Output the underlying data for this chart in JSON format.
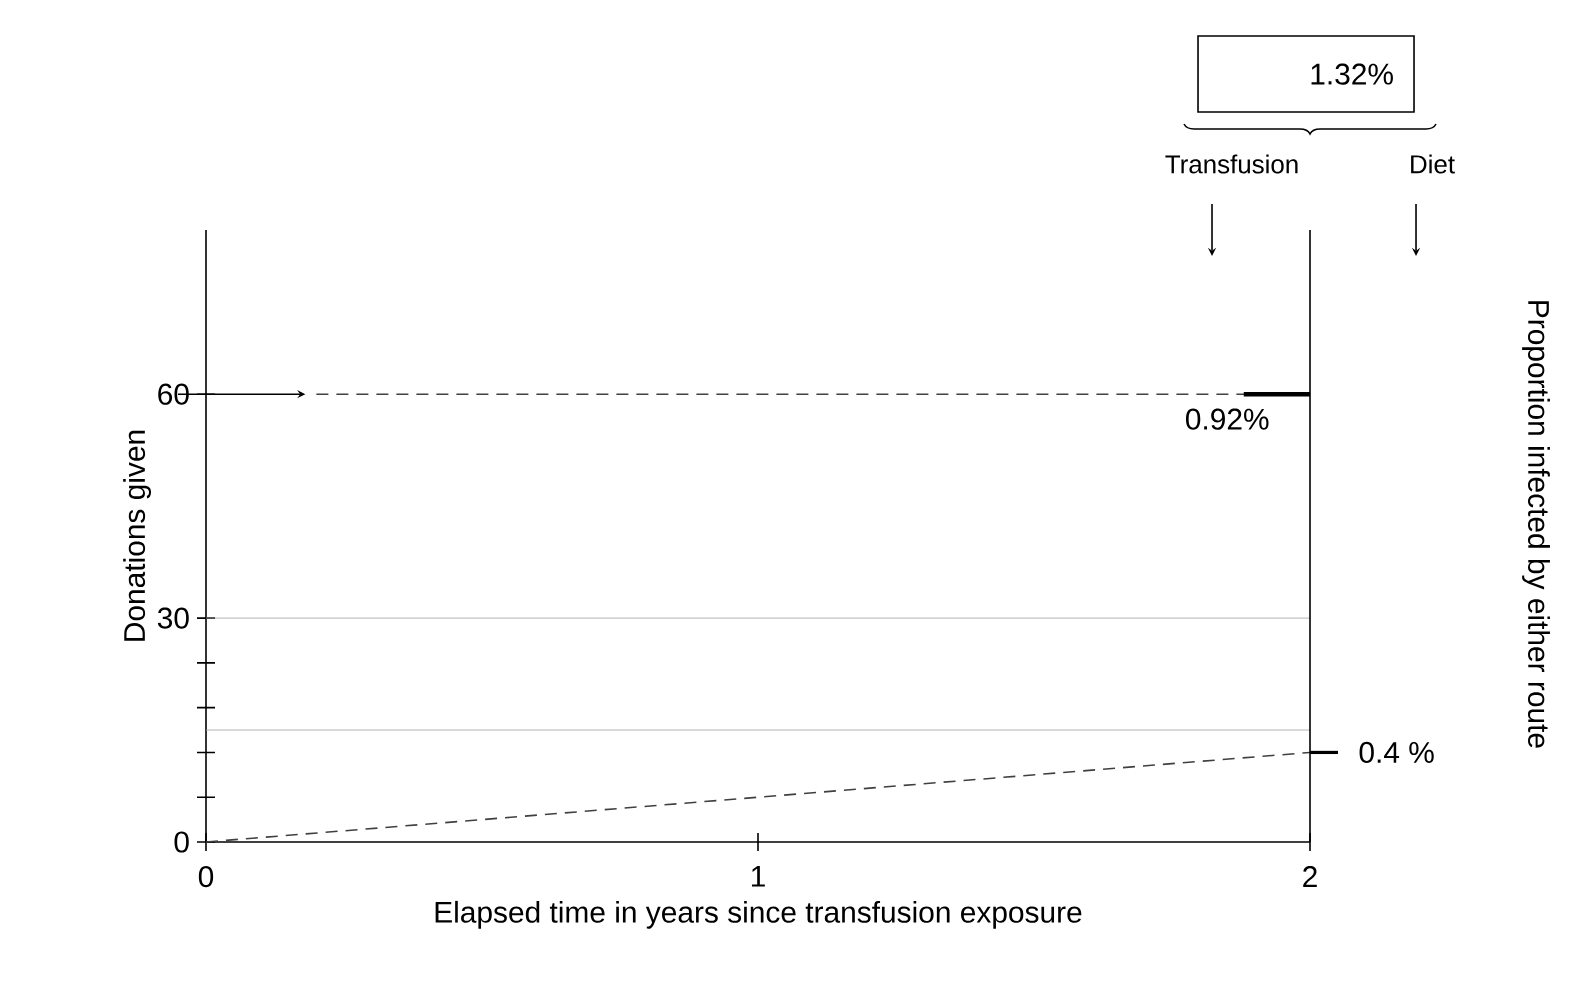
{
  "chart_data": {
    "type": "line",
    "xlabel": "Elapsed time  in years since transfusion exposure",
    "ylabel": "Donations given",
    "xlim": [
      0,
      2
    ],
    "xticks": [
      0,
      1,
      2
    ],
    "ylim": [
      0,
      82
    ],
    "yticks": [
      0,
      {
        "value": 6,
        "label": null
      },
      {
        "value": 12,
        "label": null
      },
      {
        "value": 18,
        "label": null
      },
      {
        "value": 24,
        "label": null
      },
      30,
      60
    ],
    "series": [
      {
        "color": "#404040",
        "line_style": "dashed",
        "x": [
          0.2,
          2
        ],
        "values": [
          60,
          60
        ]
      },
      {
        "color": "#404040",
        "line_style": "dashed",
        "x": [
          0,
          2
        ],
        "values": [
          0,
          12
        ]
      }
    ],
    "ref_lines": [
      {
        "axis": "y",
        "value": 30,
        "color": "#a0a0a0"
      },
      {
        "axis": "y",
        "value": 15,
        "color": "#a0a0a0"
      }
    ],
    "annotations": [
      "1.32%",
      "Transfusion",
      "Diet",
      "Proportion infected by either route",
      {
        "text": "0.92%",
        "x": 1.85,
        "y": 60
      },
      {
        "text": "0.4 %",
        "x": 2,
        "y": 12
      }
    ],
    "legend": false,
    "grid": false
  }
}
